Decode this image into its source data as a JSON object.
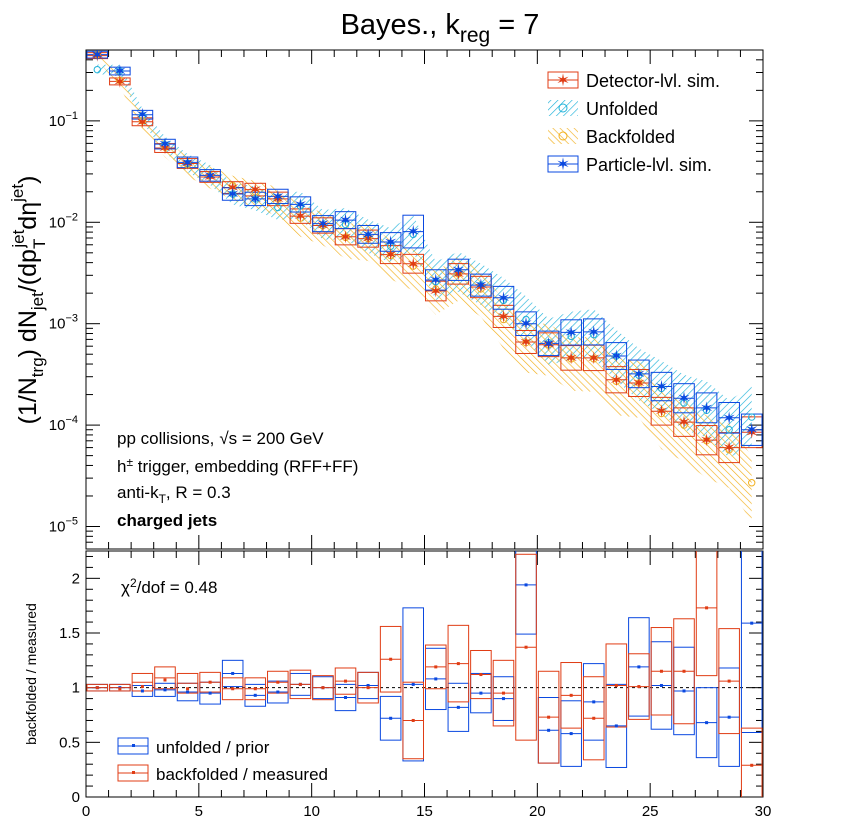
{
  "title": "Bayes., k",
  "title_sub": "reg",
  "title_tail": " = 7",
  "upper_ylabel": {
    "p1": "(1/N",
    "s1": "trg",
    "p2": ") dN",
    "s2": "jet",
    "p3": "/(dp",
    "s3a": "T",
    "s3b": "jet",
    "p4": "dη",
    "s4": "jet",
    "p5": ")"
  },
  "lower_ylabel": "backfolded / measured",
  "legend_upper": {
    "detector": "Detector-lvl. sim.",
    "unfolded": "Unfolded",
    "backfolded": "Backfolded",
    "particle": "Particle-lvl. sim."
  },
  "annotations": {
    "line1_a": "pp collisions,",
    "line1_sqrt": "√s",
    "line1_b": " = 200 GeV",
    "line2_a": "h",
    "line2_sup": "±",
    "line2_b": " trigger, embedding (RFF+FF)",
    "line3_a": "anti-k",
    "line3_sub": "T",
    "line3_b": ", R = 0.3",
    "line4": "charged jets",
    "chi2_a": "χ",
    "chi2_sup": "2",
    "chi2_b": "/dof = 0.48"
  },
  "legend_lower": {
    "unfolded_prior": "unfolded / prior",
    "backfolded_measured": "backfolded / measured"
  },
  "colors": {
    "detector": "#e03c14",
    "unfolded": "#1fb2d9",
    "backfolded": "#f2b01e",
    "particle": "#0a48e0"
  },
  "chart_data": [
    {
      "type": "scatter",
      "panel": "upper",
      "y_scale": "log",
      "xlim": [
        0,
        30
      ],
      "ylim": [
        6e-06,
        0.5
      ],
      "y_ticks": [
        {
          "base": "10",
          "exp": "−1"
        },
        {
          "base": "10",
          "exp": "−2"
        },
        {
          "base": "10",
          "exp": "−3"
        },
        {
          "base": "10",
          "exp": "−4"
        },
        {
          "base": "10",
          "exp": "−5"
        }
      ],
      "x": [
        0.5,
        1.5,
        2.5,
        3.5,
        4.5,
        5.5,
        6.5,
        7.5,
        8.5,
        9.5,
        10.5,
        11.5,
        12.5,
        13.5,
        14.5,
        15.5,
        16.5,
        17.5,
        18.5,
        19.5,
        20.5,
        21.5,
        22.5,
        23.5,
        24.5,
        25.5,
        26.5,
        27.5,
        28.5,
        29.5
      ],
      "series": [
        {
          "name": "Detector-lvl. sim.",
          "values": [
            0.44,
            0.245,
            0.098,
            0.054,
            0.038,
            0.028,
            0.022,
            0.021,
            0.017,
            0.0115,
            0.0093,
            0.0072,
            0.0069,
            0.0048,
            0.0039,
            0.0021,
            0.0031,
            0.0023,
            0.00118,
            0.00066,
            0.00062,
            0.00046,
            0.00046,
            0.00028,
            0.00026,
            0.000137,
            0.000107,
            7.1e-05,
            6e-05,
            8.5e-05
          ]
        },
        {
          "name": "Unfolded",
          "values": [
            0.32,
            0.31,
            0.112,
            0.058,
            0.038,
            0.029,
            0.019,
            0.017,
            0.014,
            0.0145,
            0.0093,
            0.0095,
            0.0072,
            0.0058,
            0.0076,
            0.0026,
            0.0032,
            0.0024,
            0.0017,
            0.0011,
            0.00065,
            0.00075,
            0.00078,
            0.00048,
            0.00031,
            0.00023,
            0.000165,
            0.00014,
            9e-05,
            0.00012
          ]
        },
        {
          "name": "Backfolded",
          "values": [
            0.45,
            0.25,
            0.1,
            0.055,
            0.037,
            0.029,
            0.023,
            0.02,
            0.017,
            0.011,
            0.0093,
            0.0071,
            0.0069,
            0.0047,
            0.0037,
            0.0022,
            0.0031,
            0.0022,
            0.0011,
            0.00065,
            0.00062,
            0.00045,
            0.00045,
            0.00027,
            0.00026,
            0.00013,
            0.0001,
            7e-05,
            5.7e-05,
            2.7e-05
          ]
        },
        {
          "name": "Particle-lvl. sim.",
          "values": [
            0.45,
            0.31,
            0.115,
            0.059,
            0.039,
            0.029,
            0.019,
            0.017,
            0.018,
            0.015,
            0.0097,
            0.0105,
            0.0076,
            0.0064,
            0.0081,
            0.0027,
            0.0034,
            0.0024,
            0.0018,
            0.001,
            0.00064,
            0.00082,
            0.00083,
            0.00048,
            0.00032,
            0.00024,
            0.000184,
            0.000148,
            0.000118,
            9e-05
          ]
        }
      ]
    },
    {
      "type": "scatter",
      "panel": "lower",
      "xlim": [
        0,
        30
      ],
      "ylim": [
        0,
        2.25
      ],
      "x_ticks": [
        "0",
        "5",
        "10",
        "15",
        "20",
        "25",
        "30"
      ],
      "y_ticks": [
        "0",
        "0.5",
        "1",
        "1.5",
        "2"
      ],
      "reference_line": 1,
      "x": [
        0.5,
        1.5,
        2.5,
        3.5,
        4.5,
        5.5,
        6.5,
        7.5,
        8.5,
        9.5,
        10.5,
        11.5,
        12.5,
        13.5,
        14.5,
        15.5,
        16.5,
        17.5,
        18.5,
        19.5,
        20.5,
        21.5,
        22.5,
        23.5,
        24.5,
        25.5,
        26.5,
        27.5,
        28.5,
        29.5
      ],
      "series": [
        {
          "name": "unfolded / prior",
          "values": [
            1.0,
            1.0,
            0.97,
            0.98,
            0.96,
            0.95,
            1.13,
            0.93,
            0.96,
            1.03,
            1.0,
            0.91,
            1.02,
            0.72,
            1.03,
            1.08,
            0.82,
            0.95,
            0.9,
            1.94,
            0.61,
            0.58,
            0.87,
            0.65,
            1.19,
            1.02,
            0.97,
            0.68,
            0.73,
            1.59
          ],
          "err": [
            0.03,
            0.03,
            0.05,
            0.06,
            0.08,
            0.1,
            0.12,
            0.1,
            0.1,
            0.1,
            0.1,
            0.12,
            0.12,
            0.2,
            0.7,
            0.28,
            0.22,
            0.18,
            0.2,
            0.45,
            0.3,
            0.3,
            0.35,
            0.38,
            0.45,
            0.4,
            0.4,
            0.32,
            0.45,
            1.0
          ]
        },
        {
          "name": "backfolded / measured",
          "values": [
            1.0,
            0.99,
            1.01,
            1.07,
            0.99,
            1.05,
            0.99,
            0.99,
            1.05,
            1.03,
            1.0,
            1.06,
            1.0,
            1.26,
            0.7,
            1.19,
            1.22,
            1.12,
            0.95,
            1.37,
            0.73,
            0.93,
            0.72,
            1.02,
            1.01,
            1.15,
            1.15,
            1.73,
            1.06,
            0.29
          ]
        },
        {
          "name": "backfolded / measured (box)",
          "values": [
            1.0,
            1.0,
            1.05,
            1.09,
            1.04,
            1.05,
            0.99,
            0.99,
            1.05,
            1.03,
            1.0,
            1.06,
            1.0,
            1.26,
            0.7,
            1.19,
            1.22,
            1.12,
            0.95,
            1.37,
            0.73,
            0.93,
            0.72,
            1.02,
            1.01,
            1.15,
            1.15,
            1.73,
            1.06,
            0.29
          ],
          "err": [
            0.03,
            0.03,
            0.08,
            0.1,
            0.09,
            0.09,
            0.1,
            0.1,
            0.1,
            0.13,
            0.11,
            0.12,
            0.14,
            0.3,
            0.35,
            0.2,
            0.35,
            0.22,
            0.3,
            0.85,
            0.42,
            0.3,
            0.38,
            0.38,
            0.3,
            0.4,
            0.48,
            0.62,
            0.48,
            0.34
          ]
        }
      ]
    }
  ]
}
